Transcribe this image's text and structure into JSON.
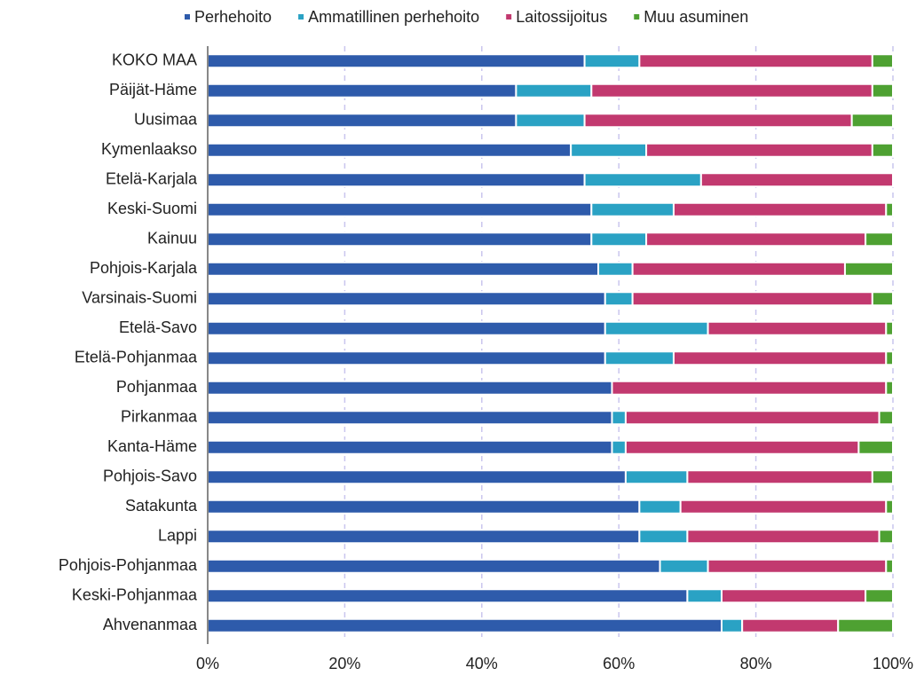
{
  "chart_data": {
    "type": "stacked_barh",
    "categories": [
      "KOKO MAA",
      "Päijät-Häme",
      "Uusimaa",
      "Kymenlaakso",
      "Etelä-Karjala",
      "Keski-Suomi",
      "Kainuu",
      "Pohjois-Karjala",
      "Varsinais-Suomi",
      "Etelä-Savo",
      "Etelä-Pohjanmaa",
      "Pohjanmaa",
      "Pirkanmaa",
      "Kanta-Häme",
      "Pohjois-Savo",
      "Satakunta",
      "Lappi",
      "Pohjois-Pohjanmaa",
      "Keski-Pohjanmaa",
      "Ahvenanmaa"
    ],
    "series": [
      {
        "name": "Perhehoito",
        "color": "#2e5bab",
        "values": [
          55,
          45,
          45,
          53,
          55,
          56,
          56,
          57,
          58,
          58,
          58,
          59,
          59,
          59,
          61,
          63,
          63,
          66,
          70,
          75
        ]
      },
      {
        "name": "Ammatillinen perhehoito",
        "color": "#2aa2c4",
        "values": [
          8,
          11,
          10,
          11,
          17,
          12,
          8,
          5,
          4,
          15,
          10,
          0,
          2,
          2,
          9,
          6,
          7,
          7,
          5,
          3
        ]
      },
      {
        "name": "Laitossijoitus",
        "color": "#c2396f",
        "values": [
          34,
          41,
          39,
          33,
          28,
          31,
          32,
          31,
          35,
          26,
          31,
          40,
          37,
          34,
          27,
          30,
          28,
          26,
          21,
          14
        ]
      },
      {
        "name": "Muu asuminen",
        "color": "#4ea132",
        "values": [
          3,
          3,
          6,
          3,
          0,
          1,
          4,
          7,
          3,
          1,
          1,
          1,
          2,
          5,
          3,
          1,
          2,
          1,
          4,
          8
        ]
      }
    ],
    "xlim": [
      0,
      100
    ],
    "xticks": [
      {
        "value": 0,
        "label": "0%"
      },
      {
        "value": 20,
        "label": "20%"
      },
      {
        "value": 40,
        "label": "40%"
      },
      {
        "value": 60,
        "label": "60%"
      },
      {
        "value": 80,
        "label": "80%"
      },
      {
        "value": 100,
        "label": "100%"
      }
    ],
    "grid": true,
    "legend": "top"
  }
}
